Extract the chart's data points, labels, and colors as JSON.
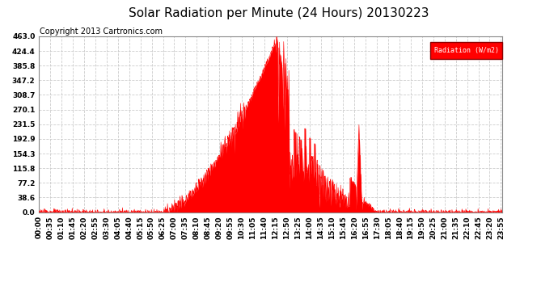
{
  "title": "Solar Radiation per Minute (24 Hours) 20130223",
  "copyright": "Copyright 2013 Cartronics.com",
  "legend_label": "Radiation (W/m2)",
  "y_ticks": [
    0.0,
    38.6,
    77.2,
    115.8,
    154.3,
    192.9,
    231.5,
    270.1,
    308.7,
    347.2,
    385.8,
    424.4,
    463.0
  ],
  "y_max": 463.0,
  "fill_color": "#FF0000",
  "line_color": "#FF0000",
  "background_color": "#FFFFFF",
  "grid_color": "#CCCCCC",
  "dashed_line_color": "#FF0000",
  "title_fontsize": 11,
  "copyright_fontsize": 7,
  "tick_fontsize": 6.5,
  "x_tick_interval_minutes": 35,
  "total_minutes": 1440,
  "sunrise_minute": 385,
  "sunset_minute": 1055,
  "peak_minute": 742
}
